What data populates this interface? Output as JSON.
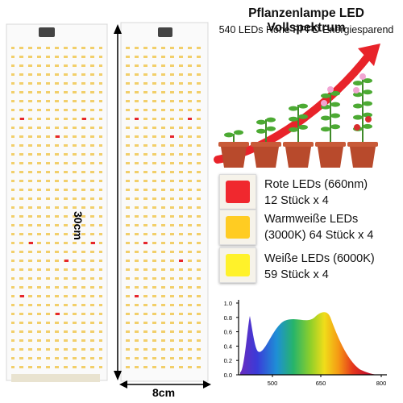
{
  "header": {
    "title": "Pflanzenlampe LED Vollspektrum",
    "subtitle": "540 LEDs Hohe PPFD Energiesparend"
  },
  "dimensions": {
    "height_label": "30cm",
    "width_label": "8cm"
  },
  "legend": [
    {
      "line1": "Rote LEDs (660nm)",
      "line2": "12 Stück x 4",
      "color": "#f0282e"
    },
    {
      "line1": "Warmweiße LEDs",
      "line2": "(3000K) 64 Stück x 4",
      "color": "#ffcc22"
    },
    {
      "line1": "Weiße LEDs (6000K)",
      "line2": "59 Stück x 4",
      "color": "#fff22a"
    }
  ],
  "spectrum_chart": {
    "y_ticks": [
      "1.0",
      "0.8",
      "0.6",
      "0.4",
      "0.2",
      "0.0"
    ],
    "x_ticks": [
      "500",
      "650",
      "800"
    ]
  },
  "colors": {
    "arrow": "#e8232a",
    "pot": "#b84a2c",
    "pcb": "#fafafa",
    "led_warm": "#f2cf6a",
    "led_red": "#e6262c"
  }
}
